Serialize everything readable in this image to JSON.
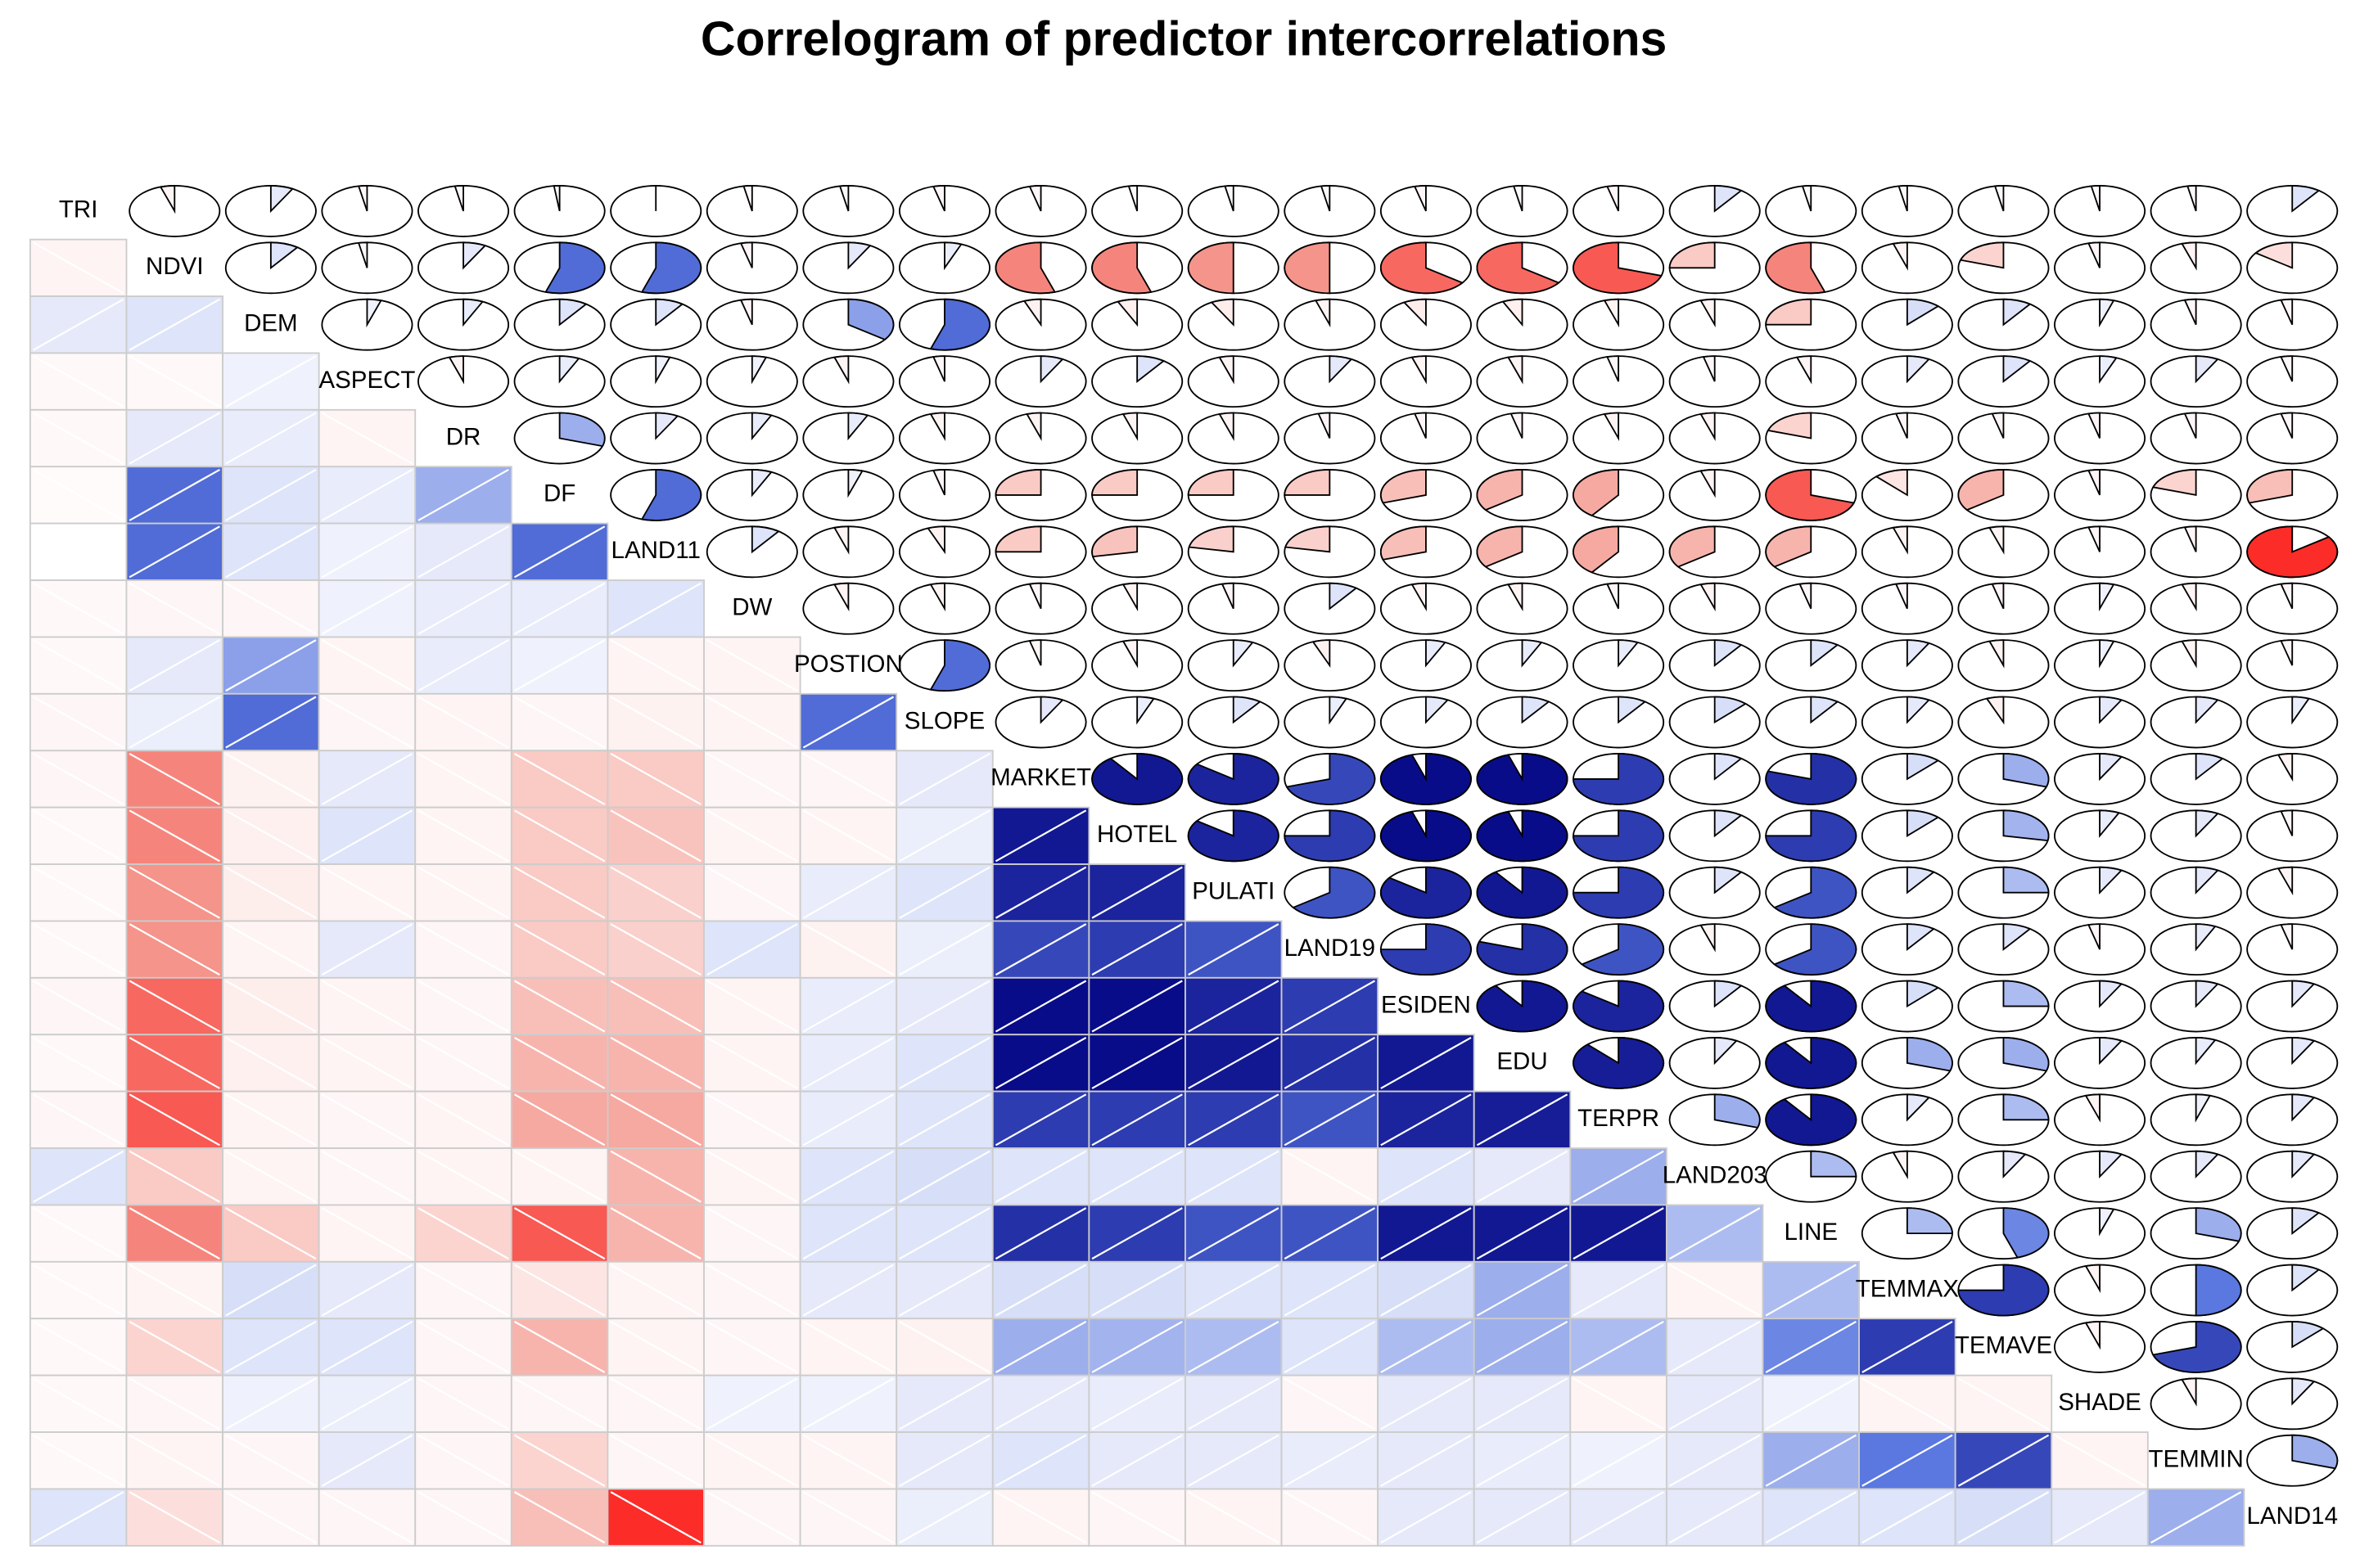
{
  "chart_data": {
    "type": "correlogram",
    "title": "Correlogram of predictor intercorrelations",
    "variables": [
      "TRI",
      "NDVI",
      "DEM",
      "ASPECT",
      "DR",
      "DF",
      "LAND11",
      "DW",
      "POSTION",
      "SLOPE",
      "MARKET",
      "HOTEL",
      "PULATI",
      "LAND19",
      "ESIDEN",
      "EDU",
      "TERPR",
      "LAND203",
      "LINE",
      "TEMMAX",
      "TEMAVE",
      "SHADE",
      "TEMMIN",
      "LAND14"
    ],
    "values": [
      [],
      [
        -0.05
      ],
      [
        0.08,
        0.1
      ],
      [
        -0.03,
        -0.03,
        0.05
      ],
      [
        -0.03,
        0.08,
        0.07,
        -0.05
      ],
      [
        -0.02,
        0.55,
        0.1,
        0.07,
        0.3
      ],
      [
        0,
        0.55,
        0.1,
        0.05,
        0.08,
        0.55
      ],
      [
        -0.03,
        -0.04,
        -0.04,
        0.05,
        0.07,
        0.07,
        0.1
      ],
      [
        -0.03,
        0.08,
        0.35,
        -0.05,
        0.07,
        0.05,
        -0.05,
        -0.05
      ],
      [
        -0.04,
        0.06,
        0.55,
        -0.04,
        -0.05,
        -0.04,
        -0.06,
        -0.05,
        0.55
      ],
      [
        -0.04,
        -0.55,
        -0.06,
        0.08,
        -0.05,
        -0.25,
        -0.25,
        -0.04,
        -0.04,
        0.08
      ],
      [
        -0.03,
        -0.55,
        -0.07,
        0.1,
        -0.05,
        -0.25,
        -0.28,
        -0.05,
        -0.05,
        0.06,
        0.9
      ],
      [
        -0.03,
        -0.5,
        -0.08,
        -0.05,
        -0.05,
        -0.25,
        -0.22,
        -0.04,
        0.07,
        0.1,
        0.85,
        0.85
      ],
      [
        -0.03,
        -0.5,
        -0.05,
        0.08,
        -0.04,
        -0.25,
        -0.22,
        0.1,
        -0.06,
        0.06,
        0.7,
        0.75,
        0.65
      ],
      [
        -0.04,
        -0.65,
        -0.08,
        -0.05,
        -0.04,
        -0.3,
        -0.3,
        -0.05,
        0.07,
        0.08,
        0.95,
        0.95,
        0.85,
        0.75
      ],
      [
        -0.03,
        -0.65,
        -0.07,
        -0.05,
        -0.04,
        -0.35,
        -0.35,
        -0.05,
        0.07,
        0.1,
        0.95,
        0.95,
        0.9,
        0.8,
        0.9
      ],
      [
        -0.04,
        -0.7,
        -0.05,
        -0.04,
        -0.05,
        -0.4,
        -0.4,
        -0.04,
        0.07,
        0.1,
        0.75,
        0.75,
        0.75,
        0.65,
        0.85,
        0.88
      ],
      [
        0.1,
        -0.25,
        -0.05,
        -0.04,
        -0.05,
        -0.05,
        -0.35,
        -0.05,
        0.1,
        0.12,
        0.1,
        0.1,
        0.1,
        -0.05,
        0.1,
        0.08,
        0.3
      ],
      [
        -0.03,
        -0.55,
        -0.25,
        -0.05,
        -0.2,
        -0.7,
        -0.35,
        -0.04,
        0.1,
        0.1,
        0.8,
        0.75,
        0.65,
        0.65,
        0.9,
        0.9,
        0.9,
        0.25
      ],
      [
        -0.03,
        -0.05,
        0.12,
        0.08,
        -0.04,
        -0.12,
        -0.05,
        -0.04,
        0.08,
        0.08,
        0.12,
        0.12,
        0.1,
        0.1,
        0.12,
        0.3,
        0.08,
        -0.05,
        0.25
      ],
      [
        -0.03,
        -0.2,
        0.1,
        0.1,
        -0.04,
        -0.35,
        -0.05,
        -0.04,
        -0.05,
        -0.06,
        0.3,
        0.28,
        0.25,
        0.1,
        0.25,
        0.3,
        0.25,
        0.08,
        0.45,
        0.75
      ],
      [
        -0.03,
        -0.04,
        0.05,
        0.06,
        -0.04,
        -0.04,
        -0.04,
        0.05,
        0.05,
        0.08,
        0.08,
        0.07,
        0.08,
        -0.04,
        0.08,
        0.08,
        -0.05,
        0.08,
        0.05,
        -0.05,
        -0.05
      ],
      [
        -0.03,
        -0.05,
        -0.04,
        0.08,
        -0.04,
        -0.2,
        -0.04,
        -0.05,
        -0.05,
        0.08,
        0.1,
        0.08,
        0.08,
        0.07,
        0.08,
        0.07,
        0.05,
        0.08,
        0.3,
        0.5,
        0.7,
        -0.05
      ],
      [
        0.1,
        -0.15,
        -0.04,
        -0.04,
        -0.04,
        -0.3,
        -0.85,
        -0.04,
        -0.04,
        0.06,
        -0.05,
        -0.04,
        -0.05,
        -0.04,
        0.08,
        0.08,
        0.08,
        0.08,
        0.1,
        0.1,
        0.12,
        0.08,
        0.3
      ]
    ],
    "color_scale": [
      "#ff0000",
      "#f4948a",
      "#ffffff",
      "#5a78e0",
      "#00007f"
    ]
  }
}
